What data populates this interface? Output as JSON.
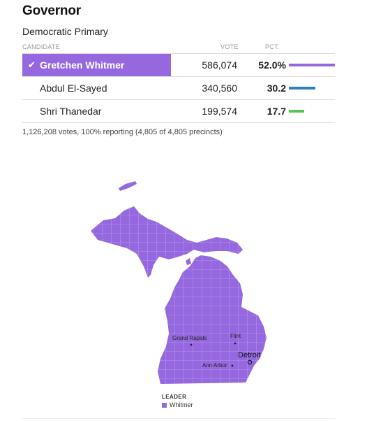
{
  "race": {
    "title": "Governor",
    "subtitle": "Democratic Primary",
    "columns": {
      "candidate": "CANDIDATE",
      "vote": "VOTE",
      "pct": "PCT."
    },
    "candidates": [
      {
        "name": "Gretchen Whitmer",
        "votes": "586,074",
        "pct": "52.0%",
        "pct_value": 52.0,
        "color": "#9568e0",
        "winner": true
      },
      {
        "name": "Abdul El-Sayed",
        "votes": "340,560",
        "pct": "30.2",
        "pct_value": 30.2,
        "color": "#2f7fc1",
        "winner": false
      },
      {
        "name": "Shri Thanedar",
        "votes": "199,574",
        "pct": "17.7",
        "pct_value": 17.7,
        "color": "#5bc35b",
        "winner": false
      }
    ],
    "reporting": "1,126,208 votes, 100% reporting (4,805 of 4,805 precincts)"
  },
  "map": {
    "fill_color": "#9568e0",
    "cities": {
      "grand_rapids": "Grand Rapids",
      "flint": "Flint",
      "detroit": "Detroit",
      "ann_arbor": "Ann Arbor"
    }
  },
  "legend": {
    "title": "LEADER",
    "item": "Whitmer",
    "color": "#9568e0"
  }
}
